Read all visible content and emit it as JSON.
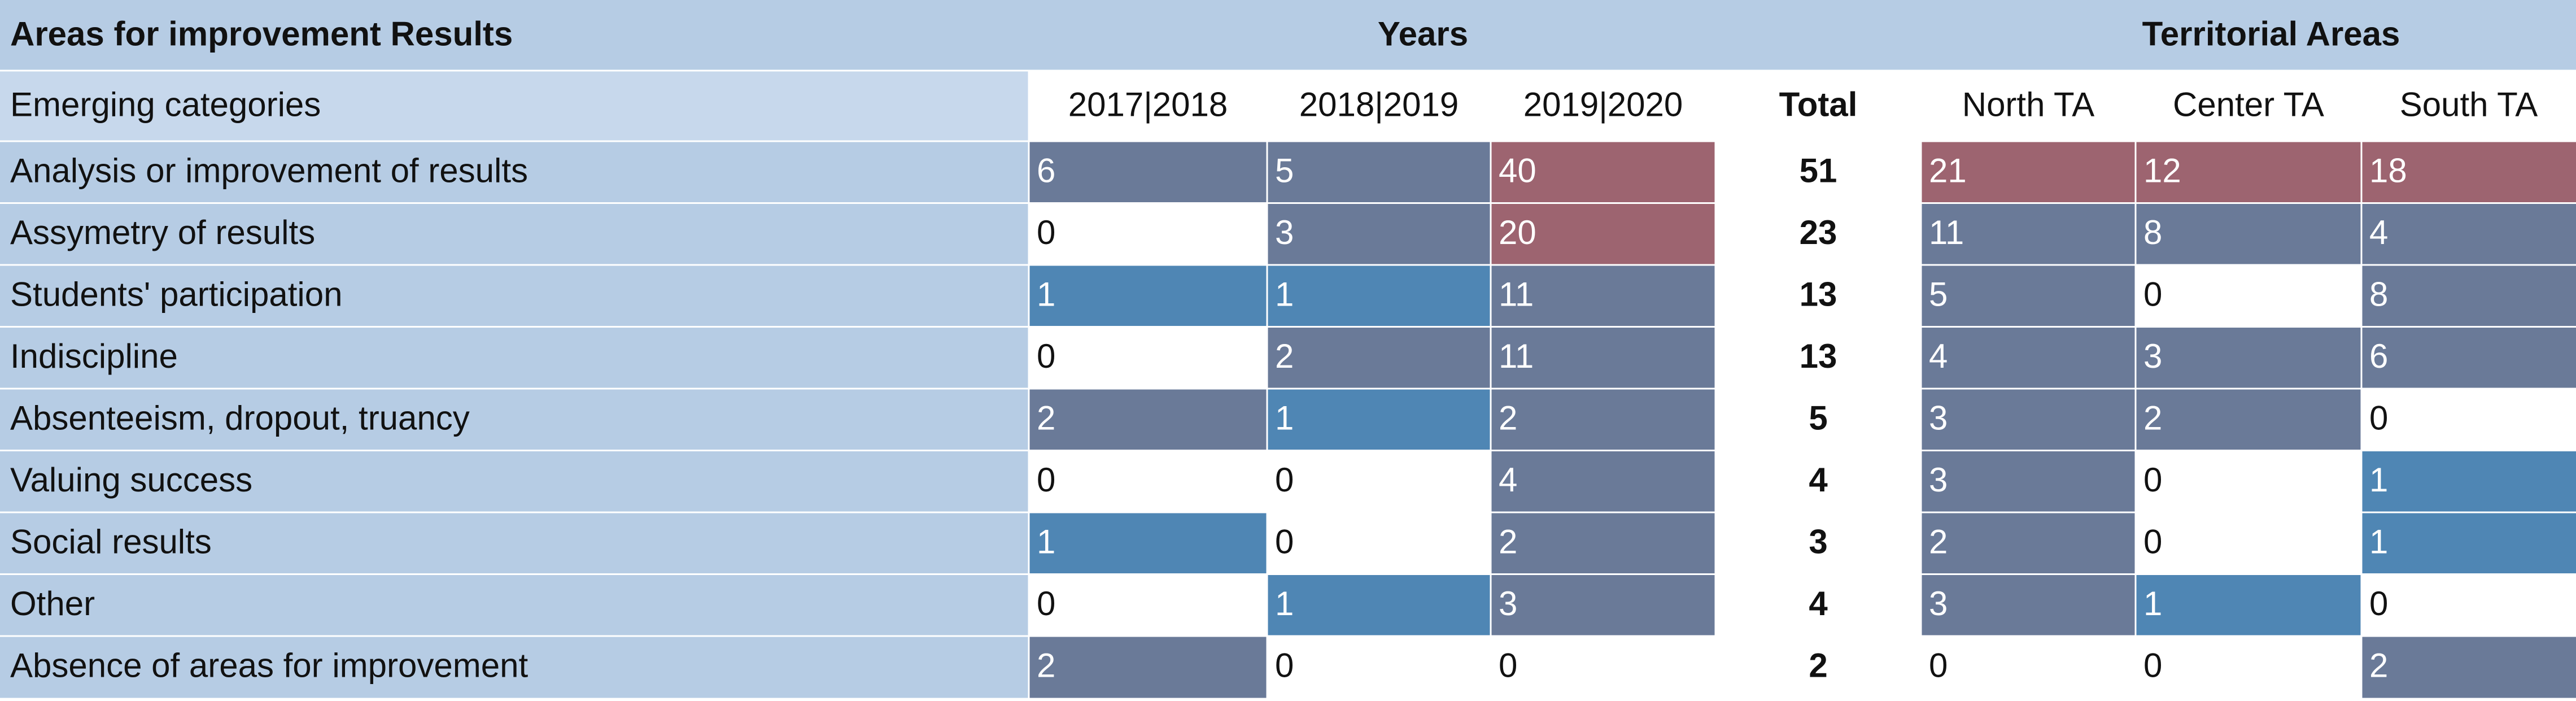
{
  "chart_data": {
    "type": "table",
    "title": "Areas for improvement Results",
    "group_headers": {
      "years": "Years",
      "territorial": "Territorial Areas"
    },
    "row_header": "Emerging categories",
    "columns": [
      "2017|2018",
      "2018|2019",
      "2019|2020",
      "Total",
      "North TA",
      "Center TA",
      "South TA"
    ],
    "rows": [
      {
        "label": "Analysis or improvement of results",
        "values": [
          6,
          5,
          40,
          51,
          21,
          12,
          18
        ]
      },
      {
        "label": "Assymetry of results",
        "values": [
          0,
          3,
          20,
          23,
          11,
          8,
          4
        ]
      },
      {
        "label": "Students' participation",
        "values": [
          1,
          1,
          11,
          13,
          5,
          0,
          8
        ]
      },
      {
        "label": "Indiscipline",
        "values": [
          0,
          2,
          11,
          13,
          4,
          3,
          6
        ]
      },
      {
        "label": "Absenteeism, dropout, truancy",
        "values": [
          2,
          1,
          2,
          5,
          3,
          2,
          0
        ]
      },
      {
        "label": "Valuing success",
        "values": [
          0,
          0,
          4,
          4,
          3,
          0,
          1
        ]
      },
      {
        "label": "Social results",
        "values": [
          1,
          0,
          2,
          3,
          2,
          0,
          1
        ]
      },
      {
        "label": "Other",
        "values": [
          0,
          1,
          3,
          4,
          3,
          1,
          0
        ]
      },
      {
        "label": "Absence of areas for improvement",
        "values": [
          2,
          0,
          0,
          2,
          0,
          0,
          2
        ]
      }
    ],
    "heat_colors": {
      "zero": "#ffffff",
      "low": "#4f86b4",
      "mid": "#6a7a98",
      "high": "#9d6470",
      "label_bg": "#b6cce4",
      "label_bg_alt": "#c7d8ec",
      "total_bg": "#ffffff"
    }
  }
}
